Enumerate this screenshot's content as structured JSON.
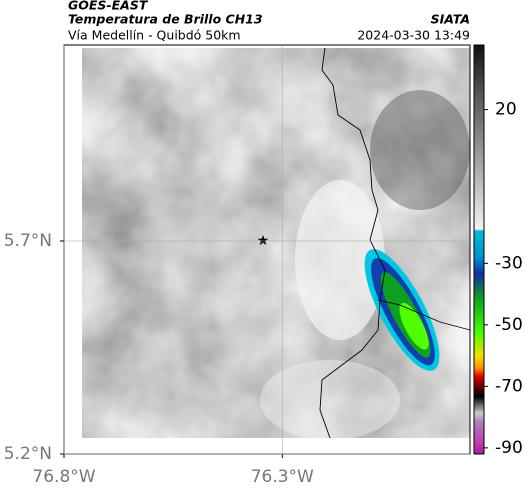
{
  "header": {
    "product": "GOES-EAST",
    "title": "Temperatura de Brillo CH13",
    "source": "SIATA",
    "region": "Vía Medellín - Quibdó 50km",
    "datetime": "2024-03-30 13:49"
  },
  "map": {
    "xlim": [
      -76.8,
      -75.87
    ],
    "ylim": [
      5.2,
      6.16
    ],
    "xticks": [
      {
        "value": -76.8,
        "label": "76.8°W"
      },
      {
        "value": -76.3,
        "label": "76.3°W"
      }
    ],
    "yticks": [
      {
        "value": 5.2,
        "label": "5.2°N"
      },
      {
        "value": 5.7,
        "label": "5.7°N"
      }
    ]
  },
  "colorbar": {
    "clim": [
      -92,
      41
    ],
    "ticks": [
      20,
      -30,
      -50,
      -70,
      -90
    ]
  }
}
